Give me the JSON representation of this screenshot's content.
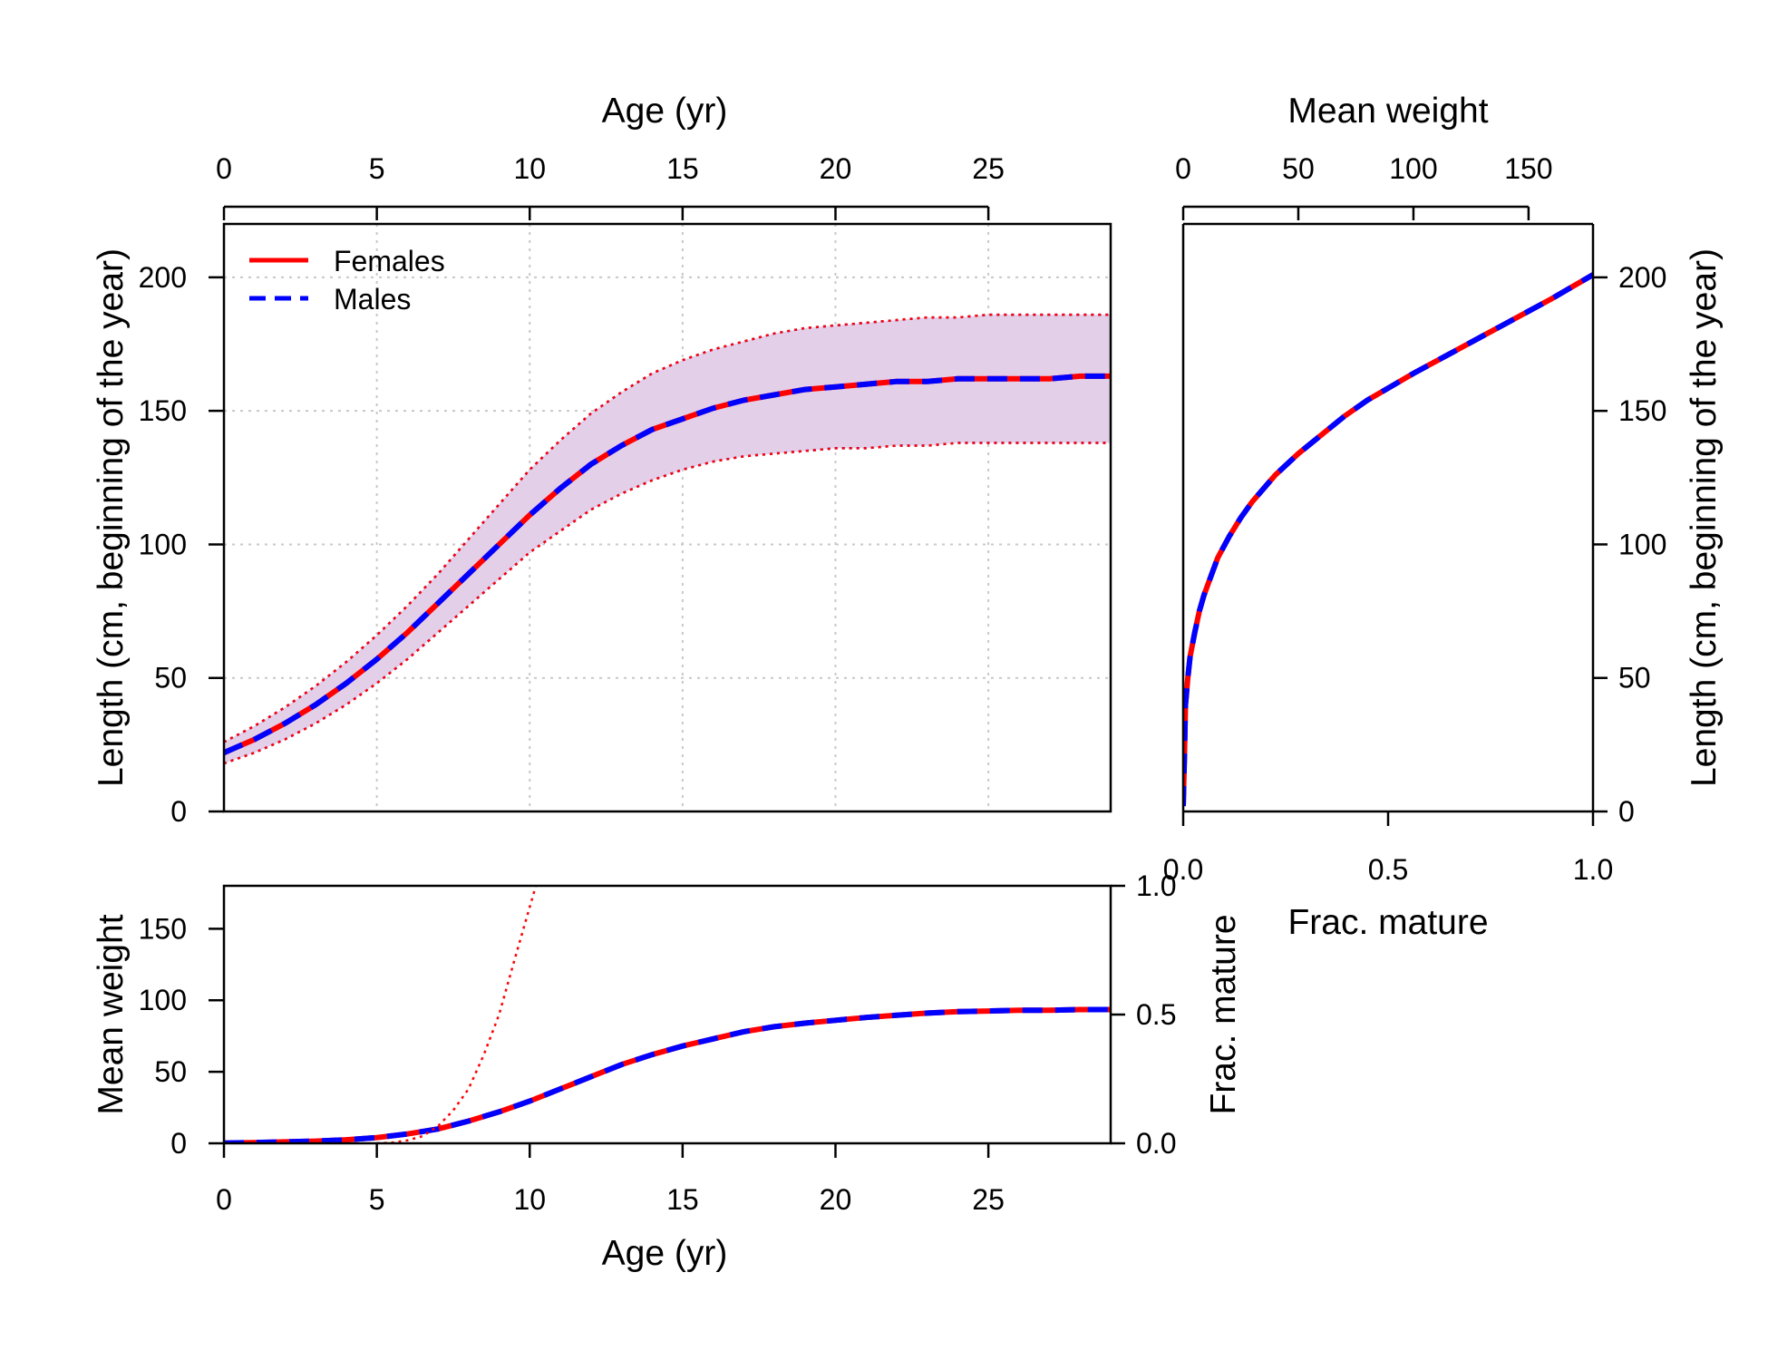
{
  "chart_data": [
    {
      "id": "growth",
      "type": "line",
      "xlabel": "Age (yr)",
      "ylabel": "Length (cm, beginning of the year)",
      "xlim": [
        0,
        29
      ],
      "ylim": [
        0,
        220
      ],
      "xticks": [
        0,
        5,
        10,
        15,
        20,
        25
      ],
      "yticks": [
        0,
        50,
        100,
        150,
        200
      ],
      "grid": true,
      "legend_position": "top-left",
      "x": [
        0,
        1,
        2,
        3,
        4,
        5,
        6,
        7,
        8,
        9,
        10,
        11,
        12,
        13,
        14,
        15,
        16,
        17,
        18,
        19,
        20,
        21,
        22,
        23,
        24,
        25,
        26,
        27,
        28,
        29
      ],
      "series": [
        {
          "name": "Females",
          "color": "#ff0000",
          "style": "solid",
          "role": "mean",
          "values": [
            22,
            27,
            33,
            40,
            48,
            57,
            67,
            78,
            89,
            100,
            111,
            121,
            130,
            137,
            143,
            147,
            151,
            154,
            156,
            158,
            159,
            160,
            161,
            161,
            162,
            162,
            162,
            162,
            163,
            163
          ]
        },
        {
          "name": "Males",
          "color": "#0000ff",
          "style": "dashed",
          "role": "mean",
          "values": [
            22,
            27,
            33,
            40,
            48,
            57,
            67,
            78,
            89,
            100,
            111,
            121,
            130,
            137,
            143,
            147,
            151,
            154,
            156,
            158,
            159,
            160,
            161,
            161,
            162,
            162,
            162,
            162,
            163,
            163
          ]
        },
        {
          "name": "",
          "color": "#ff0000",
          "style": "dotted",
          "role": "upper",
          "values": [
            26,
            32,
            39,
            47,
            56,
            66,
            77,
            89,
            102,
            115,
            128,
            139,
            149,
            157,
            164,
            169,
            173,
            176,
            179,
            181,
            182,
            183,
            184,
            185,
            185,
            186,
            186,
            186,
            186,
            186
          ]
        },
        {
          "name": "",
          "color": "#ff0000",
          "style": "dotted",
          "role": "lower",
          "values": [
            18,
            22,
            27,
            33,
            40,
            48,
            57,
            67,
            77,
            87,
            97,
            105,
            113,
            119,
            124,
            128,
            131,
            133,
            134,
            135,
            136,
            136,
            137,
            137,
            138,
            138,
            138,
            138,
            138,
            138
          ]
        }
      ],
      "band_color": "#e3cfe8",
      "legend": [
        {
          "label": "Females",
          "color": "#ff0000",
          "style": "solid"
        },
        {
          "label": "Males",
          "color": "#0000ff",
          "style": "dashed"
        }
      ]
    },
    {
      "id": "weight_maturity",
      "type": "line",
      "xlabel": "Age (yr)",
      "ylabel": "Mean weight",
      "y2label": "Frac. mature",
      "xlim": [
        0,
        29
      ],
      "ylim": [
        0,
        180
      ],
      "y2lim": [
        0,
        1
      ],
      "xticks": [
        0,
        5,
        10,
        15,
        20,
        25
      ],
      "yticks": [
        0,
        50,
        100,
        150
      ],
      "y2ticks": [
        "0.0",
        "0.5",
        "1.0"
      ],
      "x": [
        0,
        1,
        2,
        3,
        4,
        5,
        6,
        7,
        8,
        9,
        10,
        11,
        12,
        13,
        14,
        15,
        16,
        17,
        18,
        19,
        20,
        21,
        22,
        23,
        24,
        25,
        26,
        27,
        28,
        29
      ],
      "series": [
        {
          "name": "Females",
          "color": "#ff0000",
          "style": "solid",
          "axis": "left",
          "values": [
            0.2,
            0.5,
            1,
            1.5,
            2.5,
            4,
            6.5,
            10,
            15.5,
            22,
            29.5,
            38,
            46.5,
            55,
            62,
            68,
            73,
            78,
            81.5,
            84,
            86,
            88,
            89.5,
            91,
            92,
            92.5,
            93,
            93,
            93.5,
            93.5
          ]
        },
        {
          "name": "Males",
          "color": "#0000ff",
          "style": "dashed",
          "axis": "left",
          "values": [
            0.2,
            0.5,
            1,
            1.5,
            2.5,
            4,
            6.5,
            10,
            15.5,
            22,
            29.5,
            38,
            46.5,
            55,
            62,
            68,
            73,
            78,
            81.5,
            84,
            86,
            88,
            89.5,
            91,
            92,
            92.5,
            93,
            93,
            93.5,
            93.5
          ]
        },
        {
          "name": "",
          "color": "#ff0000",
          "style": "dotted",
          "axis": "left",
          "x": [
            5,
            5.5,
            6,
            6.5,
            7,
            7.5,
            8,
            8.5,
            9,
            9.5,
            10.2
          ],
          "values": [
            0,
            0.5,
            2,
            5,
            12,
            23,
            38,
            62,
            90,
            128,
            180
          ]
        }
      ]
    },
    {
      "id": "length_weight",
      "type": "line",
      "xlabel": "Frac. mature",
      "x2label": "Mean weight",
      "ylabel": "Length (cm, beginning of the year)",
      "xlim": [
        0,
        1
      ],
      "x2lim": [
        0,
        178
      ],
      "ylim": [
        0,
        220
      ],
      "xticks": [
        "0.0",
        "0.5",
        "1.0"
      ],
      "x2ticks": [
        0,
        50,
        100,
        150
      ],
      "yticks": [
        0,
        50,
        100,
        150,
        200
      ],
      "series": [
        {
          "name": "Females",
          "color": "#ff0000",
          "style": "solid",
          "x": [
            0,
            0.5,
            1,
            2,
            3,
            5,
            7,
            9,
            12,
            15,
            20,
            25,
            30,
            40,
            50,
            60,
            70,
            80,
            90,
            100,
            115,
            130,
            145,
            160,
            178
          ],
          "values": [
            2,
            20,
            40,
            50,
            58,
            67,
            75,
            81,
            88,
            95,
            103,
            110,
            116,
            126,
            134,
            141,
            148,
            154,
            159,
            164,
            171,
            178,
            185,
            192,
            201
          ]
        },
        {
          "name": "Males",
          "color": "#0000ff",
          "style": "dashed",
          "x": [
            0,
            0.5,
            1,
            2,
            3,
            5,
            7,
            9,
            12,
            15,
            20,
            25,
            30,
            40,
            50,
            60,
            70,
            80,
            90,
            100,
            115,
            130,
            145,
            160,
            178
          ],
          "values": [
            2,
            20,
            40,
            50,
            58,
            67,
            75,
            81,
            88,
            95,
            103,
            110,
            116,
            126,
            134,
            141,
            148,
            154,
            159,
            164,
            171,
            178,
            185,
            192,
            201
          ]
        }
      ]
    }
  ]
}
